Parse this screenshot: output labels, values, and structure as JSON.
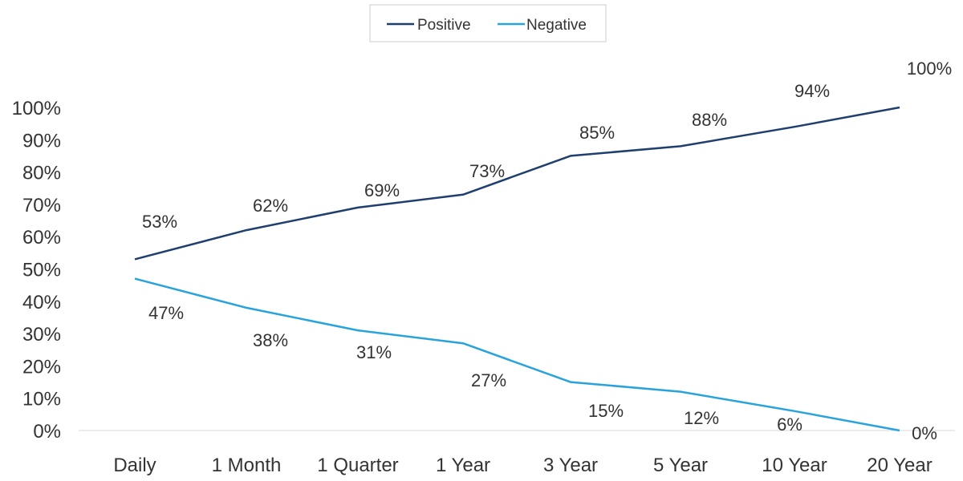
{
  "chart_data": {
    "type": "line",
    "categories": [
      "Daily",
      "1 Month",
      "1 Quarter",
      "1 Year",
      "3 Year",
      "5 Year",
      "10 Year",
      "20 Year"
    ],
    "series": [
      {
        "name": "Positive",
        "color": "#1f3f6e",
        "values": [
          53,
          62,
          69,
          73,
          85,
          88,
          94,
          100
        ],
        "labels": [
          "53%",
          "62%",
          "69%",
          "73%",
          "85%",
          "88%",
          "94%",
          "100%"
        ]
      },
      {
        "name": "Negative",
        "color": "#29a3dc",
        "values": [
          47,
          38,
          31,
          27,
          15,
          12,
          6,
          0
        ],
        "labels": [
          "47%",
          "38%",
          "31%",
          "27%",
          "15%",
          "12%",
          "6%",
          "0%"
        ]
      }
    ],
    "ylim": [
      0,
      100
    ],
    "yticks": [
      "0%",
      "10%",
      "20%",
      "30%",
      "40%",
      "50%",
      "60%",
      "70%",
      "80%",
      "90%",
      "100%"
    ],
    "grid": false,
    "legend_position": "top-center"
  }
}
